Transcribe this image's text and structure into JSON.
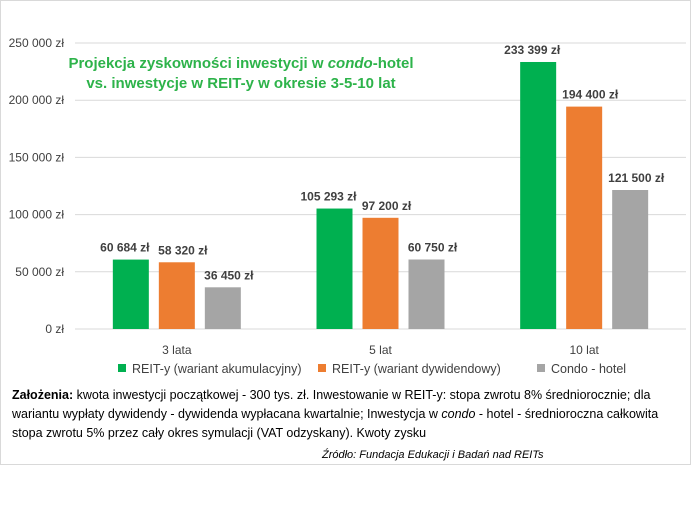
{
  "title": {
    "line1_a": "Projekcja zyskowności inwestycji w ",
    "line1_em": "condo",
    "line1_b": "-hotel",
    "line2": "vs. inwestycje w REIT-y  w okresie 3-5-10 lat"
  },
  "chart_data": {
    "type": "bar",
    "categories": [
      "3 lata",
      "5 lat",
      "10 lat"
    ],
    "series": [
      {
        "name": "REIT-y (wariant akumulacyjny)",
        "color": "#00b050",
        "values": [
          60684,
          105293,
          233399
        ],
        "labels": [
          "60 684 zł",
          "105 293 zł",
          "233 399 zł"
        ]
      },
      {
        "name": "REIT-y (wariant dywidendowy)",
        "color": "#ed7d31",
        "values": [
          58320,
          97200,
          194400
        ],
        "labels": [
          "58 320 zł",
          "97 200 zł",
          "194 400 zł"
        ]
      },
      {
        "name": "Condo - hotel",
        "color": "#a5a5a5",
        "values": [
          36450,
          60750,
          121500
        ],
        "labels": [
          "36 450 zł",
          "60 750 zł",
          "121 500 zł"
        ]
      }
    ],
    "yticks": [
      {
        "value": 0,
        "label": "0 zł"
      },
      {
        "value": 50000,
        "label": "50 000 zł"
      },
      {
        "value": 100000,
        "label": "100 000 zł"
      },
      {
        "value": 150000,
        "label": "150 000 zł"
      },
      {
        "value": 200000,
        "label": "200 000 zł"
      },
      {
        "value": 250000,
        "label": "250 000 zł"
      }
    ],
    "ylim": [
      0,
      250000
    ],
    "grid": true,
    "legend_position": "bottom"
  },
  "notes": {
    "bold": "Założenia:",
    "text_a": " kwota inwestycji początkowej - 300 tys. zł. Inwestowanie w REIT-y: stopa zwrotu 8% średniorocznie; dla wariantu wypłaty dywidendy - dywidenda wypłacana kwartalnie; Inwestycja w ",
    "em": "condo",
    "text_b": " - hotel - średnioroczna całkowita stopa zwrotu 5% przez cały okres symulacji (VAT odzyskany). Kwoty zysku"
  },
  "source": "Źródło:  Fundacja Edukacji i Badań nad REITs"
}
